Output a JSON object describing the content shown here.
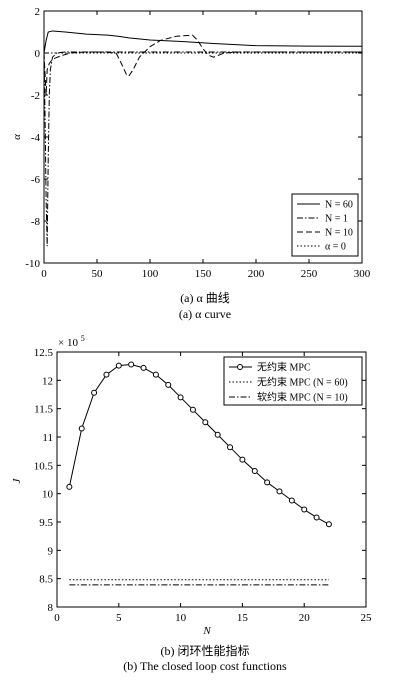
{
  "chart_data": [
    {
      "type": "line",
      "ylabel": "α",
      "xlabel": "",
      "xlim": [
        0,
        300
      ],
      "ylim": [
        -10,
        2
      ],
      "xticks": [
        0,
        50,
        100,
        150,
        200,
        250,
        300
      ],
      "yticks": [
        2,
        0,
        -2,
        -4,
        -6,
        -8,
        -10
      ],
      "grid": false,
      "legend_position": "bottom-right",
      "caption_cn": "(a) α 曲线",
      "caption_en": "(a) α curve",
      "series": [
        {
          "name": "N = 60",
          "dash": "solid",
          "x": [
            0,
            2,
            4,
            8,
            20,
            40,
            60,
            70,
            80,
            100,
            130,
            160,
            200,
            250,
            300
          ],
          "y": [
            0.0,
            0.6,
            1.0,
            1.05,
            1.0,
            0.9,
            0.85,
            0.8,
            0.72,
            0.62,
            0.55,
            0.45,
            0.35,
            0.33,
            0.32
          ]
        },
        {
          "name": "N = 1",
          "dash": "dashdot",
          "x": [
            0,
            1,
            2,
            3,
            4,
            5,
            6,
            8,
            12,
            20,
            50,
            100,
            200,
            300
          ],
          "y": [
            0.0,
            -3.0,
            -7.0,
            -9.2,
            -5.0,
            -2.0,
            -0.8,
            -0.2,
            0.0,
            0.05,
            0.05,
            0.05,
            0.05,
            0.05
          ]
        },
        {
          "name": "N = 10",
          "dash": "dashed",
          "x": [
            0,
            2,
            3,
            5,
            8,
            15,
            25,
            40,
            55,
            68,
            73,
            78,
            80,
            84,
            90,
            100,
            110,
            125,
            140,
            145,
            150,
            155,
            160,
            170,
            185,
            200,
            300
          ],
          "y": [
            0.0,
            -2.0,
            -0.8,
            -0.5,
            -0.3,
            -0.15,
            0.0,
            0.05,
            0.05,
            0.0,
            -0.5,
            -1.05,
            -1.1,
            -0.8,
            -0.2,
            0.3,
            0.6,
            0.8,
            0.85,
            0.6,
            0.2,
            -0.1,
            -0.2,
            0.0,
            0.05,
            0.05,
            0.05
          ]
        },
        {
          "name": "α = 0",
          "dash": "dotted",
          "x": [
            0,
            300
          ],
          "y": [
            0,
            0
          ]
        }
      ]
    },
    {
      "type": "line",
      "ylabel": "J",
      "xlabel": "N",
      "multiplier": "× 10",
      "multiplier_exp": "5",
      "xlim": [
        0,
        25
      ],
      "ylim": [
        8,
        12.5
      ],
      "xticks": [
        0,
        5,
        10,
        15,
        20,
        25
      ],
      "yticks": [
        12.5,
        12,
        11.5,
        11,
        10.5,
        10,
        9.5,
        9,
        8.5,
        8
      ],
      "grid": false,
      "legend_position": "top-right",
      "caption_cn": "(b) 闭环性能指标",
      "caption_en": "(b) The closed loop cost functions",
      "series": [
        {
          "name": "无约束  MPC",
          "dash": "solid",
          "markers": "circle",
          "x": [
            1,
            2,
            3,
            4,
            5,
            6,
            7,
            8,
            9,
            10,
            11,
            12,
            13,
            14,
            15,
            16,
            17,
            18,
            19,
            20,
            21,
            22
          ],
          "y": [
            10.12,
            11.15,
            11.78,
            12.1,
            12.26,
            12.28,
            12.22,
            12.1,
            11.92,
            11.7,
            11.48,
            11.26,
            11.04,
            10.82,
            10.6,
            10.4,
            10.2,
            10.04,
            9.88,
            9.72,
            9.58,
            9.46
          ]
        },
        {
          "name": "无约束  MPC (N = 60)",
          "dash": "dotted",
          "x": [
            1,
            22
          ],
          "y": [
            8.48,
            8.48
          ]
        },
        {
          "name": "软约束  MPC (N = 10)",
          "dash": "dashdot",
          "x": [
            1,
            22
          ],
          "y": [
            8.39,
            8.39
          ]
        }
      ]
    }
  ]
}
